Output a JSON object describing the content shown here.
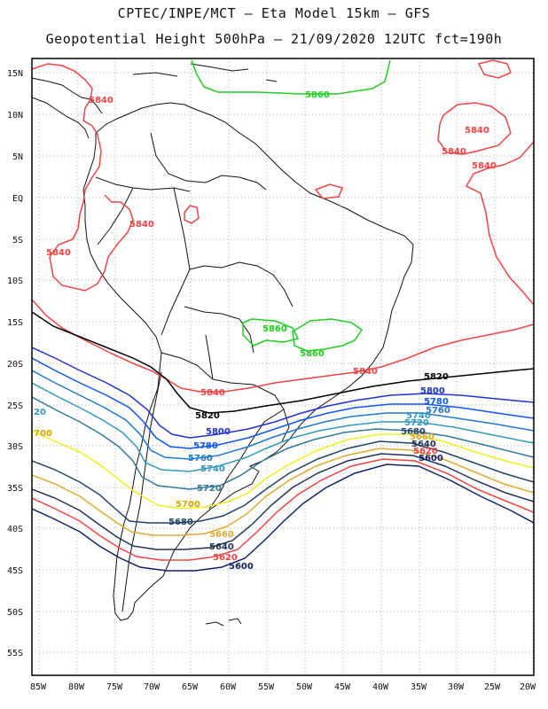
{
  "header": {
    "line1": "CPTEC/INPE/MCT –  Eta Model 15km – GFS",
    "line2": "Geopotential Height 500hPa – 21/09/2020 12UTC fct=190h"
  },
  "axes": {
    "lat_labels": [
      "15N",
      "10N",
      "5N",
      "EQ",
      "5S",
      "10S",
      "15S",
      "20S",
      "25S",
      "30S",
      "35S",
      "40S",
      "45S",
      "50S",
      "55S"
    ],
    "lon_labels": [
      "85W",
      "80W",
      "75W",
      "70W",
      "65W",
      "60W",
      "55W",
      "50W",
      "45W",
      "40W",
      "35W",
      "30W",
      "25W",
      "20W"
    ]
  },
  "contours": {
    "c5860": "5860",
    "c5840": "5840",
    "c5820": "5820",
    "c5800": "5800",
    "c5780": "5780",
    "c5760": "5760",
    "c5740": "5740",
    "c5720": "5720",
    "c5700": "5700",
    "c5680": "5680",
    "c5660": "5660",
    "c5640": "5640",
    "c5620": "5620",
    "c5600": "5600",
    "edge20": "20",
    "edge700": "700"
  },
  "colors": {
    "c5860": "#22cc22",
    "c5840": "#ee4444",
    "c5820": "#000000",
    "c5800": "#2233cc",
    "c5780": "#1155ee",
    "c5760": "#2277cc",
    "c5740": "#3399bb",
    "c5720": "#337799",
    "c5700": "#eeee22",
    "c5680": "#224466",
    "c5660": "#ddaa33",
    "c5640": "#223355",
    "c5620": "#ee4444",
    "c5600": "#112266"
  }
}
